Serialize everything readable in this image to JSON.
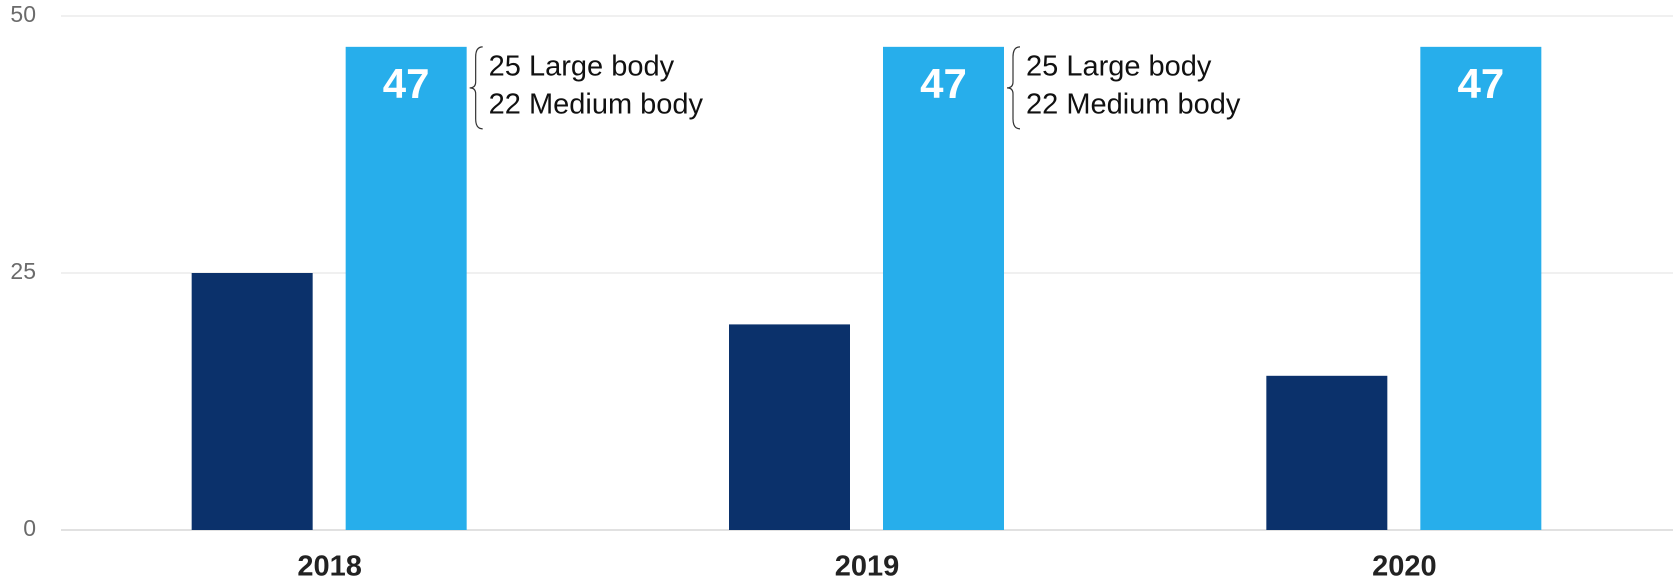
{
  "chart_data": {
    "type": "bar",
    "categories": [
      "2018",
      "2019",
      "2020"
    ],
    "series": [
      {
        "color": "#0b316b",
        "values": [
          25,
          20,
          15
        ]
      },
      {
        "color": "#27aeeb",
        "values": [
          47,
          47,
          47
        ]
      }
    ],
    "ylim": [
      0,
      50
    ],
    "yticks": [
      0,
      25,
      50
    ],
    "grid": true,
    "annotations": [
      {
        "x": "2018",
        "lines": [
          "25 Large body",
          "22 Medium body"
        ]
      },
      {
        "x": "2019",
        "lines": [
          "25 Large body",
          "22 Medium body"
        ]
      }
    ]
  }
}
